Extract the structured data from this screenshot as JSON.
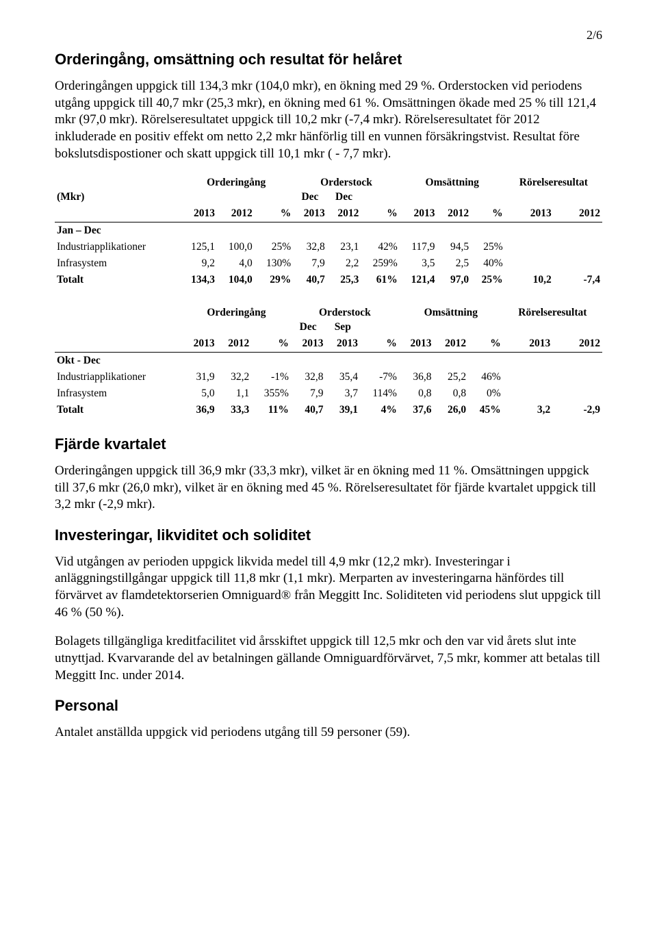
{
  "page_number": "2/6",
  "section1": {
    "heading": "Orderingång, omsättning och resultat för helåret",
    "paragraph": "Orderingången uppgick till 134,3 mkr (104,0 mkr), en ökning med 29 %. Orderstocken vid periodens utgång uppgick till 40,7 mkr (25,3 mkr), en ökning med 61 %. Omsättningen ökade med 25 % till 121,4 mkr (97,0 mkr). Rörelseresultatet uppgick till 10,2 mkr (-7,4 mkr). Rörelseresultatet för 2012 inkluderade en positiv effekt om netto 2,2 mkr hänförlig till en vunnen försäkringstvist. Resultat före bokslutsdispostioner och skatt uppgick till 10,1 mkr ( - 7,7 mkr)."
  },
  "table1": {
    "mkr_label": "(Mkr)",
    "group_headers": [
      "Orderingång",
      "Orderstock",
      "Omsättning",
      "Rörelseresultat"
    ],
    "sub_headers": [
      "Dec",
      "Dec"
    ],
    "years": [
      "2013",
      "2012",
      "%",
      "2013",
      "2012",
      "%",
      "2013",
      "2012",
      "%",
      "2013",
      "2012"
    ],
    "period": "Jan – Dec",
    "rows": [
      {
        "label": "Industriapplikationer",
        "vals": [
          "125,1",
          "100,0",
          "25%",
          "32,8",
          "23,1",
          "42%",
          "117,9",
          "94,5",
          "25%",
          "",
          ""
        ]
      },
      {
        "label": "Infrasystem",
        "vals": [
          "9,2",
          "4,0",
          "130%",
          "7,9",
          "2,2",
          "259%",
          "3,5",
          "2,5",
          "40%",
          "",
          ""
        ]
      }
    ],
    "total": {
      "label": "Totalt",
      "vals": [
        "134,3",
        "104,0",
        "29%",
        "40,7",
        "25,3",
        "61%",
        "121,4",
        "97,0",
        "25%",
        "10,2",
        "-7,4"
      ]
    }
  },
  "table2": {
    "group_headers": [
      "Orderingång",
      "Orderstock",
      "Omsättning",
      "Rörelseresultat"
    ],
    "sub_headers": [
      "Dec",
      "Sep"
    ],
    "years": [
      "2013",
      "2012",
      "%",
      "2013",
      "2013",
      "%",
      "2013",
      "2012",
      "%",
      "2013",
      "2012"
    ],
    "period": "Okt - Dec",
    "rows": [
      {
        "label": "Industriapplikationer",
        "vals": [
          "31,9",
          "32,2",
          "-1%",
          "32,8",
          "35,4",
          "-7%",
          "36,8",
          "25,2",
          "46%",
          "",
          ""
        ]
      },
      {
        "label": "Infrasystem",
        "vals": [
          "5,0",
          "1,1",
          "355%",
          "7,9",
          "3,7",
          "114%",
          "0,8",
          "0,8",
          "0%",
          "",
          ""
        ]
      }
    ],
    "total": {
      "label": "Totalt",
      "vals": [
        "36,9",
        "33,3",
        "11%",
        "40,7",
        "39,1",
        "4%",
        "37,6",
        "26,0",
        "45%",
        "3,2",
        "-2,9"
      ]
    }
  },
  "section2": {
    "heading": "Fjärde kvartalet",
    "paragraph": "Orderingången uppgick till 36,9 mkr (33,3 mkr), vilket är en ökning med 11 %. Omsättningen uppgick till 37,6 mkr (26,0 mkr), vilket är en ökning med 45 %. Rörelseresultatet för fjärde kvartalet uppgick till 3,2 mkr (-2,9 mkr)."
  },
  "section3": {
    "heading": "Investeringar, likviditet och soliditet",
    "p1": "Vid utgången av perioden uppgick likvida medel till 4,9 mkr (12,2 mkr). Investeringar i anläggningstillgångar uppgick till 11,8 mkr (1,1 mkr). Merparten av investeringarna hänfördes till förvärvet av flamdetektorserien Omniguard® från Meggitt Inc. Soliditeten vid periodens slut uppgick till 46 % (50 %).",
    "p2": "Bolagets tillgängliga kreditfacilitet vid årsskiftet uppgick till 12,5 mkr och den var vid årets slut inte utnyttjad. Kvarvarande del av betalningen gällande Omniguardförvärvet, 7,5 mkr, kommer att betalas till Meggitt Inc. under 2014."
  },
  "section4": {
    "heading": "Personal",
    "paragraph": "Antalet anställda uppgick vid periodens utgång till 59 personer (59)."
  }
}
